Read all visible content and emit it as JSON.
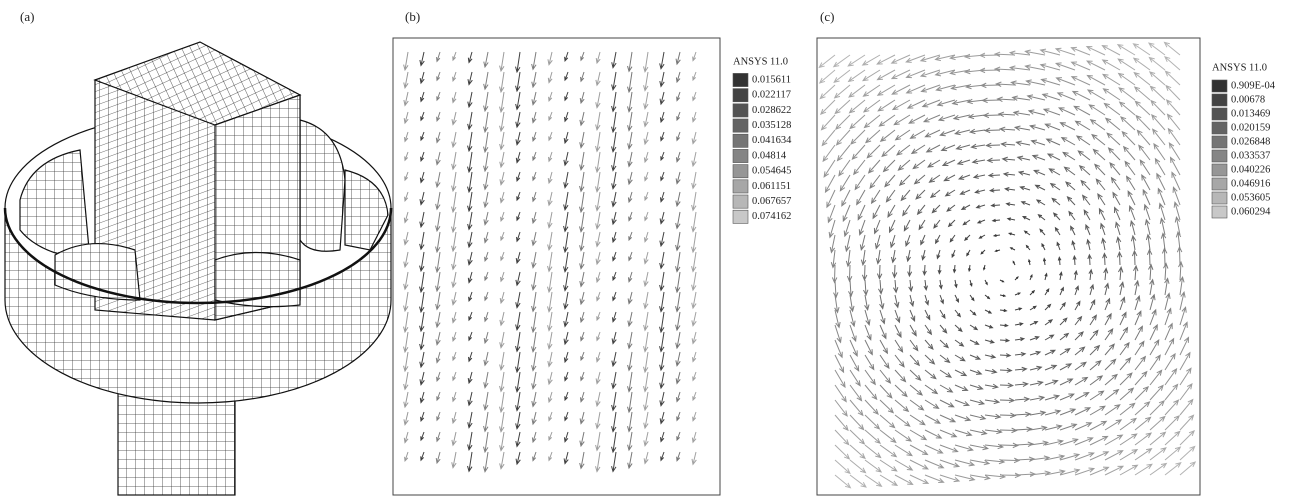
{
  "panels": [
    {
      "label": "(a)"
    },
    {
      "label": "(b)",
      "legend": {
        "title": "ANSYS 11.0",
        "values": [
          "0.015611",
          "0.022117",
          "0.028622",
          "0.035128",
          "0.041634",
          "0.04814",
          "0.054645",
          "0.061151",
          "0.067657",
          "0.074162"
        ]
      }
    },
    {
      "label": "(c)",
      "legend": {
        "title": "ANSYS 11.0",
        "values": [
          "0.909E-04",
          "0.00678",
          "0.013469",
          "0.020159",
          "0.026848",
          "0.033537",
          "0.040226",
          "0.046916",
          "0.053605",
          "0.060294"
        ]
      }
    }
  ]
}
